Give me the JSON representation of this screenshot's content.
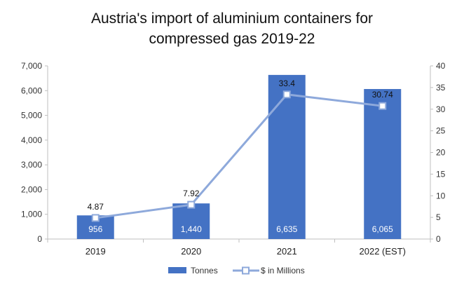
{
  "chart_data": {
    "type": "bar",
    "title_line1": "Austria's import of aluminium containers for",
    "title_line2": "compressed gas 2019-22",
    "categories": [
      "2019",
      "2020",
      "2021",
      "2022 (EST)"
    ],
    "series": [
      {
        "name": "Tonnes",
        "type": "bar",
        "axis": "left",
        "color": "#4472C4",
        "values": [
          956,
          1440,
          6635,
          6065
        ],
        "labels": [
          "956",
          "1,440",
          "6,635",
          "6,065"
        ]
      },
      {
        "name": "$ in Millions",
        "type": "line",
        "axis": "right",
        "color": "#8EA9DB",
        "values": [
          4.87,
          7.92,
          33.4,
          30.74
        ],
        "labels": [
          "4.87",
          "7.92",
          "33.4",
          "30.74"
        ]
      }
    ],
    "y_left": {
      "min": 0,
      "max": 7000,
      "step": 1000,
      "ticks": [
        "0",
        "1,000",
        "2,000",
        "3,000",
        "4,000",
        "5,000",
        "6,000",
        "7,000"
      ]
    },
    "y_right": {
      "min": 0,
      "max": 40,
      "step": 5,
      "ticks": [
        "0",
        "5",
        "10",
        "15",
        "20",
        "25",
        "30",
        "35",
        "40"
      ]
    },
    "grid": false,
    "legend_position": "bottom"
  }
}
